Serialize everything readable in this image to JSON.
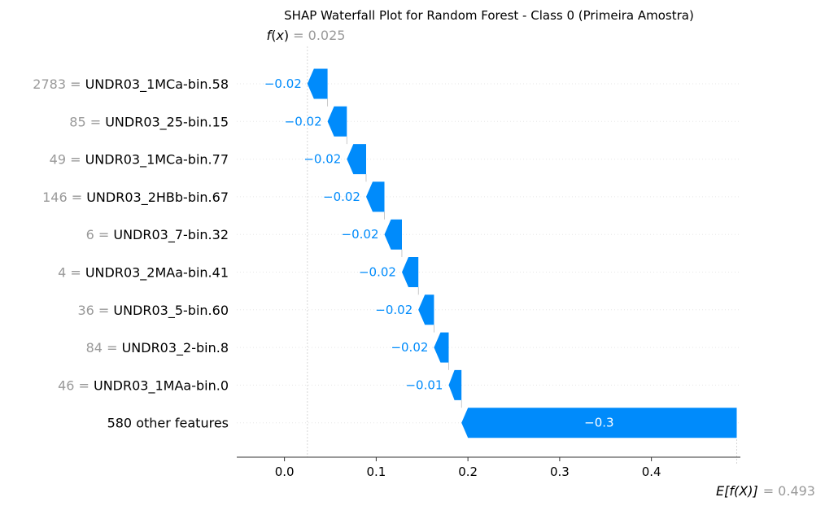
{
  "chart_data": {
    "type": "waterfall",
    "title": "SHAP Waterfall Plot for Random Forest - Class 0 (Primeira Amostra)",
    "fx": {
      "prefix": "f",
      "arg": "x",
      "value_text": "= 0.025",
      "value": 0.025
    },
    "efx": {
      "label": "E[f(X)]",
      "value_text": "= 0.493",
      "value": 0.493
    },
    "xlim": [
      -0.052,
      0.497
    ],
    "x_ticks": [
      0.0,
      0.1,
      0.2,
      0.3,
      0.4
    ],
    "x_tick_labels": [
      "0.0",
      "0.1",
      "0.2",
      "0.3",
      "0.4"
    ],
    "colors": {
      "negative": "#008bfb",
      "feature_value": "#999999",
      "text": "#000000",
      "grid": "#cccccc"
    },
    "features": [
      {
        "value": "2783",
        "name": "UNDR03_1MCa-bin.58",
        "shap": -0.022,
        "label": "−0.02",
        "start": 0.047,
        "end": 0.025
      },
      {
        "value": "85",
        "name": "UNDR03_25-bin.15",
        "shap": -0.021,
        "label": "−0.02",
        "start": 0.068,
        "end": 0.047
      },
      {
        "value": "49",
        "name": "UNDR03_1MCa-bin.77",
        "shap": -0.021,
        "label": "−0.02",
        "start": 0.089,
        "end": 0.068
      },
      {
        "value": "146",
        "name": "UNDR03_2HBb-bin.67",
        "shap": -0.02,
        "label": "−0.02",
        "start": 0.109,
        "end": 0.089
      },
      {
        "value": "6",
        "name": "UNDR03_7-bin.32",
        "shap": -0.019,
        "label": "−0.02",
        "start": 0.128,
        "end": 0.109
      },
      {
        "value": "4",
        "name": "UNDR03_2MAa-bin.41",
        "shap": -0.018,
        "label": "−0.02",
        "start": 0.146,
        "end": 0.128
      },
      {
        "value": "36",
        "name": "UNDR03_5-bin.60",
        "shap": -0.017,
        "label": "−0.02",
        "start": 0.163,
        "end": 0.146
      },
      {
        "value": "84",
        "name": "UNDR03_2-bin.8",
        "shap": -0.016,
        "label": "−0.02",
        "start": 0.179,
        "end": 0.163
      },
      {
        "value": "46",
        "name": "UNDR03_1MAa-bin.0",
        "shap": -0.014,
        "label": "−0.01",
        "start": 0.193,
        "end": 0.179
      },
      {
        "value": "",
        "name": "580 other features",
        "shap": -0.3,
        "label": "−0.3",
        "start": 0.493,
        "end": 0.193
      }
    ]
  }
}
